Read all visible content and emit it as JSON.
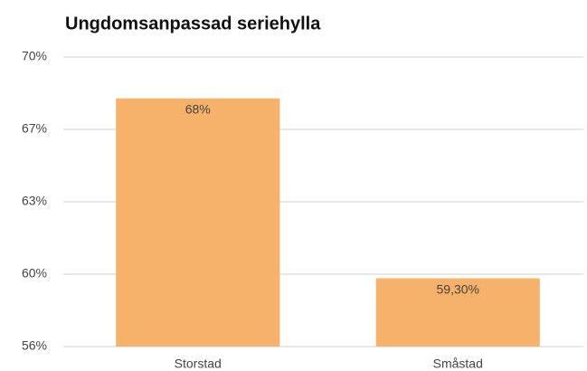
{
  "chart_data": {
    "type": "bar",
    "title": "Ungdomsanpassad seriehylla",
    "categories": [
      "Storstad",
      "Småstad"
    ],
    "values": [
      68,
      59.3
    ],
    "value_labels": [
      "68%",
      "59,30%"
    ],
    "color": "#f6b26b",
    "ylim": [
      56,
      70
    ],
    "yticks": [
      {
        "value": 56,
        "label": "56%"
      },
      {
        "value": 59.5,
        "label": "60%"
      },
      {
        "value": 63,
        "label": "63%"
      },
      {
        "value": 66.5,
        "label": "67%"
      },
      {
        "value": 70,
        "label": "70%"
      }
    ],
    "grid": true
  }
}
